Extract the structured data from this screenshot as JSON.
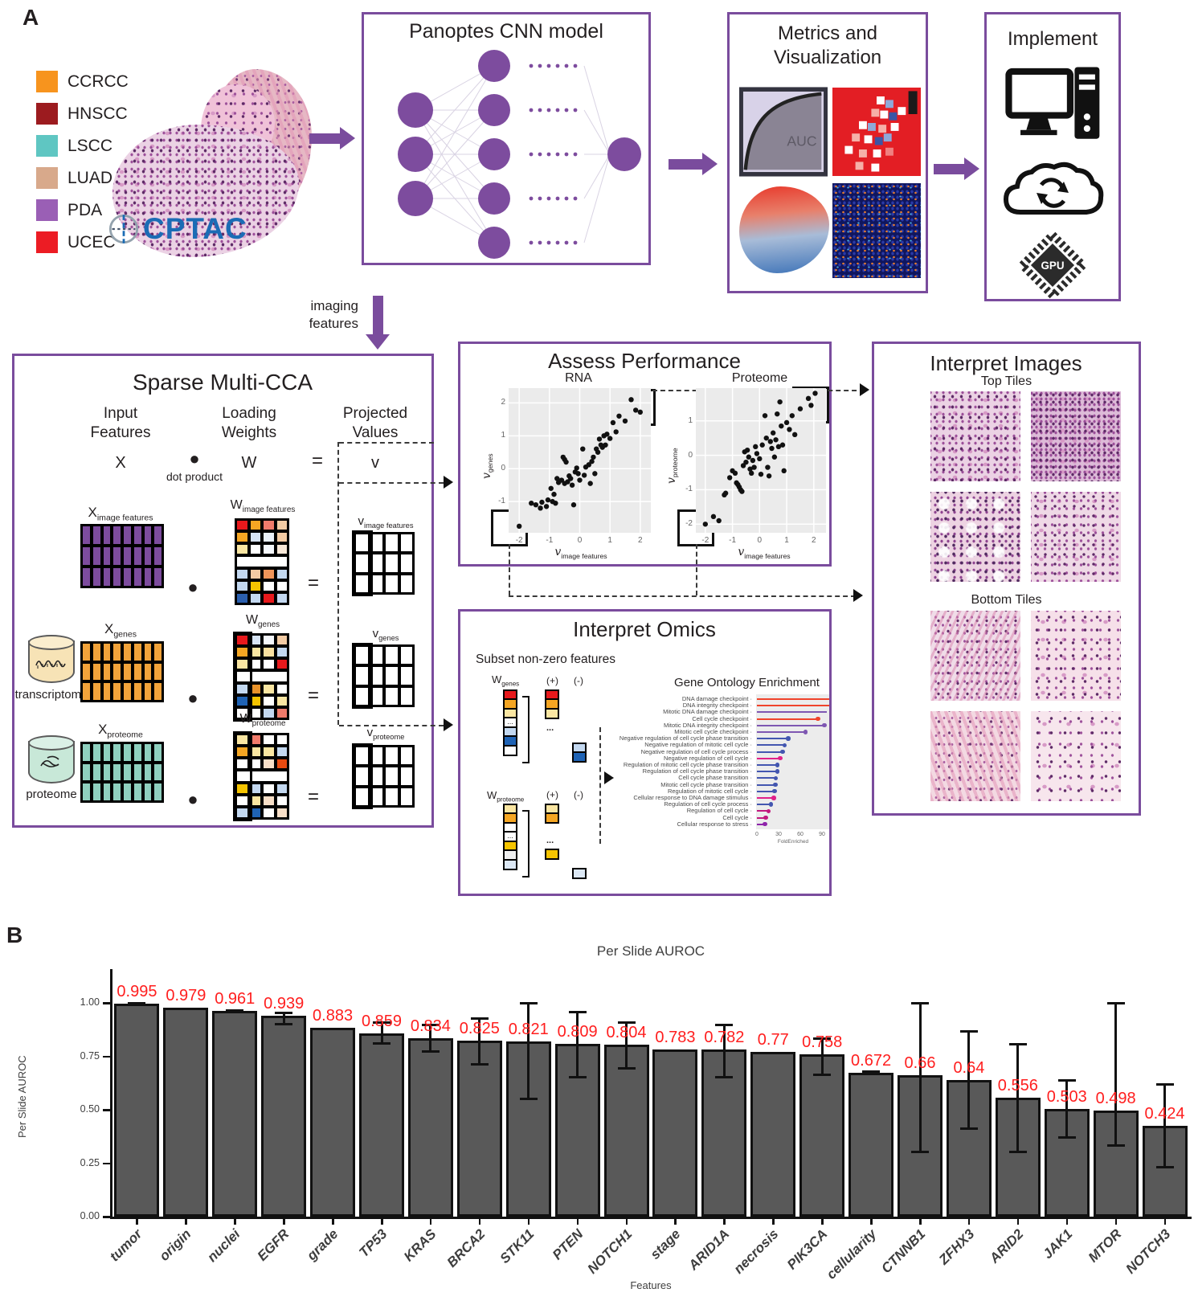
{
  "panel_a": {
    "label": "A",
    "legend": [
      {
        "label": "CCRCC",
        "color": "#F7941E"
      },
      {
        "label": "HNSCC",
        "color": "#9C1B1F"
      },
      {
        "label": "LSCC",
        "color": "#5FC6C2"
      },
      {
        "label": "LUAD",
        "color": "#D8A98B"
      },
      {
        "label": "PDA",
        "color": "#9A5FB5"
      },
      {
        "label": "UCEC",
        "color": "#EC1C24"
      }
    ],
    "cptac": {
      "name": "CPTAC",
      "color": "#1B6CB5"
    },
    "cnn": {
      "title": "Panoptes CNN model",
      "node_color": "#7D4C9E"
    },
    "metrics": {
      "title_line1": "Metrics and",
      "title_line2": "Visualization",
      "auc_label": "AUC"
    },
    "implement": {
      "title": "Implement",
      "gpu_label": "GPU",
      "icons": [
        "desktop-computer-icon",
        "cloud-sync-icon",
        "gpu-chip-icon"
      ]
    },
    "imaging_features": {
      "line1": "imaging",
      "line2": "features"
    },
    "cca": {
      "title": "Sparse Multi-CCA",
      "header": {
        "input1": "Input",
        "input2": "Features",
        "input_sym": "X",
        "dot_sym": "●",
        "dot_label": "dot product",
        "weights1": "Loading",
        "weights2": "Weights",
        "weights_sym": "W",
        "equals": "=",
        "projected1": "Projected",
        "projected2": "Values",
        "projected_sym": "v"
      },
      "rows": [
        {
          "x_sym": "X",
          "x_sub": "image features",
          "w_sym": "W",
          "w_sub": "image features",
          "v_sym": "v",
          "v_sub": "image features",
          "dot": "●",
          "equals": "="
        },
        {
          "source_label": "transcriptome",
          "x_sym": "X",
          "x_sub": "genes",
          "w_sym": "W",
          "w_sub": "genes",
          "v_sym": "v",
          "v_sub": "genes",
          "dot": "●",
          "equals": "="
        },
        {
          "source_label": "proteome",
          "x_sym": "X",
          "x_sub": "proteome",
          "w_sym": "W",
          "w_sub": "proteome",
          "v_sym": "v",
          "v_sub": "proteome",
          "dot": "●",
          "equals": "="
        }
      ]
    },
    "assess": {
      "title": "Assess Performance"
    },
    "omics": {
      "title": "Interpret Omics",
      "subset_label": "Subset non-zero features",
      "groups": [
        {
          "w_sym": "W",
          "w_sub": "genes",
          "plus": "(+)",
          "minus": "(-)",
          "dots": "..."
        },
        {
          "w_sym": "W",
          "w_sub": "proteome",
          "plus": "(+)",
          "minus": "(-)",
          "dots": "..."
        }
      ]
    },
    "images": {
      "title": "Interpret Images",
      "top_label": "Top Tiles",
      "bottom_label": "Bottom Tiles"
    }
  },
  "panel_b": {
    "label": "B"
  },
  "chart_data": [
    {
      "type": "bar",
      "title": "Per Slide AUROC",
      "xlabel": "Features",
      "ylabel": "Per Slide AUROC",
      "ylim": [
        0,
        1.0
      ],
      "yticks": [
        "0.00",
        "0.25",
        "0.50",
        "0.75",
        "1.00"
      ],
      "bar_color": "#595959",
      "value_label_color": "#FF1E1E",
      "categories": [
        "tumor",
        "origin",
        "nuclei",
        "EGFR",
        "grade",
        "TP53",
        "KRAS",
        "BRCA2",
        "STK11",
        "PTEN",
        "NOTCH1",
        "stage",
        "ARID1A",
        "necrosis",
        "PIK3CA",
        "cellularity",
        "CTNNB1",
        "ZFHX3",
        "ARID2",
        "JAK1",
        "MTOR",
        "NOTCH3"
      ],
      "values": [
        0.995,
        0.979,
        0.961,
        0.939,
        0.883,
        0.859,
        0.834,
        0.825,
        0.821,
        0.809,
        0.804,
        0.783,
        0.782,
        0.77,
        0.758,
        0.672,
        0.66,
        0.64,
        0.556,
        0.503,
        0.498,
        0.424
      ],
      "value_labels": [
        "0.995",
        "0.979",
        "0.961",
        "0.939",
        "0.883",
        "0.859",
        "0.834",
        "0.825",
        "0.821",
        "0.809",
        "0.804",
        "0.783",
        "0.782",
        "0.77",
        "0.758",
        "0.672",
        "0.66",
        "0.64",
        "0.556",
        "0.503",
        "0.498",
        "0.424"
      ],
      "error_low": [
        0.99,
        null,
        0.954,
        0.9,
        null,
        0.81,
        0.77,
        0.71,
        0.55,
        0.65,
        0.69,
        null,
        0.65,
        null,
        0.66,
        0.665,
        0.3,
        0.41,
        0.3,
        0.37,
        0.33,
        0.23
      ],
      "error_high": [
        1.0,
        null,
        0.966,
        0.956,
        null,
        0.91,
        0.9,
        0.93,
        1.0,
        0.96,
        0.91,
        null,
        0.9,
        null,
        0.835,
        0.68,
        1.0,
        0.87,
        0.81,
        0.64,
        1.0,
        0.62
      ]
    },
    {
      "type": "scatter",
      "title": "RNA",
      "xlabel_sym": "v",
      "xlabel_sub": "image features",
      "ylabel_sym": "v",
      "ylabel_sub": "genes",
      "xticks": [
        -2,
        -1,
        0,
        1,
        2
      ],
      "yticks": [
        2,
        1,
        0,
        -1
      ],
      "points": [
        [
          -2.0,
          -1.75
        ],
        [
          -1.6,
          -1.05
        ],
        [
          -1.45,
          -1.1
        ],
        [
          -1.3,
          -1.2
        ],
        [
          -1.25,
          -1.02
        ],
        [
          -1.1,
          -1.15
        ],
        [
          -1.05,
          -0.95
        ],
        [
          -0.95,
          -0.6
        ],
        [
          -0.9,
          -1.0
        ],
        [
          -0.85,
          -0.78
        ],
        [
          -0.8,
          -1.05
        ],
        [
          -0.75,
          -0.3
        ],
        [
          -0.7,
          -0.42
        ],
        [
          -0.6,
          -0.35
        ],
        [
          -0.55,
          0.35
        ],
        [
          -0.5,
          0.28
        ],
        [
          -0.5,
          -0.45
        ],
        [
          -0.45,
          0.2
        ],
        [
          -0.4,
          -0.4
        ],
        [
          -0.35,
          -0.22
        ],
        [
          -0.3,
          -0.3
        ],
        [
          -0.25,
          -0.5
        ],
        [
          -0.2,
          -1.1
        ],
        [
          -0.15,
          -0.1
        ],
        [
          -0.1,
          0.02
        ],
        [
          -0.05,
          -0.15
        ],
        [
          0.0,
          -0.35
        ],
        [
          0.1,
          0.6
        ],
        [
          0.15,
          -0.2
        ],
        [
          0.2,
          0.05
        ],
        [
          0.3,
          0.12
        ],
        [
          0.35,
          -0.45
        ],
        [
          0.4,
          0.22
        ],
        [
          0.45,
          0.35
        ],
        [
          0.5,
          -0.15
        ],
        [
          0.55,
          0.6
        ],
        [
          0.6,
          0.5
        ],
        [
          0.65,
          0.9
        ],
        [
          0.7,
          0.72
        ],
        [
          0.75,
          0.65
        ],
        [
          0.8,
          1.0
        ],
        [
          0.85,
          0.72
        ],
        [
          0.9,
          1.05
        ],
        [
          1.0,
          0.92
        ],
        [
          1.1,
          1.4
        ],
        [
          1.2,
          1.12
        ],
        [
          1.3,
          1.6
        ],
        [
          1.5,
          1.45
        ],
        [
          1.7,
          2.1
        ],
        [
          1.85,
          1.78
        ],
        [
          2.0,
          1.72
        ]
      ]
    },
    {
      "type": "scatter",
      "title": "Proteome",
      "xlabel_sym": "v",
      "xlabel_sub": "image features",
      "ylabel_sym": "v",
      "ylabel_sub": "proteome",
      "xticks": [
        -2,
        -1,
        0,
        1,
        2
      ],
      "yticks": [
        1,
        0,
        -1,
        -2
      ],
      "points": [
        [
          -2.0,
          -2.0
        ],
        [
          -1.7,
          -1.78
        ],
        [
          -1.5,
          -1.9
        ],
        [
          -1.3,
          -1.15
        ],
        [
          -1.25,
          -1.1
        ],
        [
          -1.1,
          -0.65
        ],
        [
          -1.0,
          -0.45
        ],
        [
          -0.9,
          -0.52
        ],
        [
          -0.85,
          -0.8
        ],
        [
          -0.8,
          -0.85
        ],
        [
          -0.75,
          -0.92
        ],
        [
          -0.7,
          -1.0
        ],
        [
          -0.65,
          -1.05
        ],
        [
          -0.6,
          -0.3
        ],
        [
          -0.55,
          0.1
        ],
        [
          -0.5,
          -0.2
        ],
        [
          -0.45,
          0.15
        ],
        [
          -0.4,
          -0.05
        ],
        [
          -0.35,
          -0.4
        ],
        [
          -0.3,
          -0.52
        ],
        [
          -0.25,
          -0.15
        ],
        [
          -0.2,
          -0.35
        ],
        [
          -0.15,
          0.25
        ],
        [
          -0.1,
          0.05
        ],
        [
          0.0,
          -0.1
        ],
        [
          0.05,
          -0.55
        ],
        [
          0.1,
          0.3
        ],
        [
          0.2,
          1.15
        ],
        [
          0.25,
          0.5
        ],
        [
          0.3,
          -0.35
        ],
        [
          0.35,
          -0.6
        ],
        [
          0.4,
          0.4
        ],
        [
          0.45,
          0.2
        ],
        [
          0.5,
          0.65
        ],
        [
          0.55,
          -0.05
        ],
        [
          0.6,
          0.45
        ],
        [
          0.65,
          1.2
        ],
        [
          0.7,
          0.25
        ],
        [
          0.75,
          1.55
        ],
        [
          0.8,
          0.85
        ],
        [
          0.85,
          0.3
        ],
        [
          0.9,
          -0.45
        ],
        [
          1.0,
          0.95
        ],
        [
          1.1,
          0.75
        ],
        [
          1.2,
          1.15
        ],
        [
          1.3,
          0.6
        ],
        [
          1.5,
          1.35
        ],
        [
          1.8,
          1.65
        ],
        [
          1.9,
          1.45
        ],
        [
          2.05,
          1.8
        ]
      ]
    },
    {
      "type": "lollipop",
      "title": "Gene Ontology Enrichment",
      "xlabel": "FoldEnriched",
      "xticks": [
        0,
        30,
        60,
        90
      ],
      "items": [
        {
          "label": "DNA damage checkpoint",
          "value": 107,
          "color": "#F0432B"
        },
        {
          "label": "DNA integrity checkpoint",
          "value": 107,
          "color": "#F0432B"
        },
        {
          "label": "Mitotic DNA damage checkpoint",
          "value": 97,
          "color": "#7E57B2"
        },
        {
          "label": "Cell cycle checkpoint",
          "value": 84,
          "color": "#F0432B"
        },
        {
          "label": "Mitotic DNA integrity checkpoint",
          "value": 93,
          "color": "#7E57B2"
        },
        {
          "label": "Mitotic cell cycle checkpoint",
          "value": 67,
          "color": "#7E57B2"
        },
        {
          "label": "Negative regulation of cell cycle phase transition",
          "value": 43,
          "color": "#4356B0"
        },
        {
          "label": "Negative regulation of mitotic cell cycle",
          "value": 38,
          "color": "#4356B0"
        },
        {
          "label": "Negative regulation of cell cycle process",
          "value": 35,
          "color": "#4356B0"
        },
        {
          "label": "Negative regulation of cell cycle",
          "value": 32,
          "color": "#E0218A"
        },
        {
          "label": "Regulation of mitotic cell cycle phase transition",
          "value": 28,
          "color": "#4356B0"
        },
        {
          "label": "Regulation of cell cycle phase transition",
          "value": 28,
          "color": "#4356B0"
        },
        {
          "label": "Cell cycle phase transition",
          "value": 26,
          "color": "#4356B0"
        },
        {
          "label": "Mitotic cell cycle phase transition",
          "value": 25,
          "color": "#4356B0"
        },
        {
          "label": "Regulation of mitotic cell cycle",
          "value": 24,
          "color": "#4356B0"
        },
        {
          "label": "Cellular response to DNA damage stimulus",
          "value": 23,
          "color": "#E0218A"
        },
        {
          "label": "Regulation of cell cycle process",
          "value": 19,
          "color": "#4356B0"
        },
        {
          "label": "Regulation of cell cycle",
          "value": 16,
          "color": "#C2187E"
        },
        {
          "label": "Cell cycle",
          "value": 12,
          "color": "#C2187E"
        },
        {
          "label": "Cellular response to stress",
          "value": 11,
          "color": "#8E24AA"
        }
      ]
    }
  ],
  "matrices": {
    "x_image": {
      "fill": "#7D4C9E",
      "rows": 3,
      "cols": 8
    },
    "x_genes": {
      "fill": "#F2A33A",
      "rows": 3,
      "cols": 8
    },
    "x_proteome": {
      "fill": "#8FD0BF",
      "rows": 3,
      "cols": 8
    },
    "w_image": [
      [
        "#E8191C",
        "#F5A623",
        "#F07B6B",
        "#F3CBA4"
      ],
      [
        "#F5A623",
        "#D7E4F5",
        "#EAF1FA",
        "#F3CBA4"
      ],
      [
        "#FAE6A2",
        "#FFFFFF",
        "#F5F8FC",
        "#F8E8D8"
      ],
      [
        "#FFFFFF"
      ],
      [
        "#C3D8F0",
        "#F3CBA4",
        "#F0955A",
        "#C3D8F0"
      ],
      [
        "#C3D8F0",
        "#F5C400",
        "#FFFFFF",
        "#FFFFFF"
      ],
      [
        "#2B5FAE",
        "#C3D8F0",
        "#E8191C",
        "#C3D8F0"
      ]
    ],
    "w_genes": [
      [
        "#E8191C",
        "#D7E4F5",
        "#F5F8FC",
        "#F3CBA4"
      ],
      [
        "#F5A623",
        "#FAE6A2",
        "#FAE0A0",
        "#C3D8F0"
      ],
      [
        "#FAE6A2",
        "#FFFFFF",
        "#FFFFFF",
        "#E8191C"
      ],
      [
        "#FFFFFF"
      ],
      [
        "#C3D8F0",
        "#E8922A",
        "#FAE6A2",
        "#FFFFFF"
      ],
      [
        "#1F63B5",
        "#F5C400",
        "#FFFFFF",
        "#FAE6A2"
      ],
      [
        "#FFFFFF",
        "#FFFFFF",
        "#C3D8F0",
        "#F07B6B"
      ]
    ],
    "w_proteome": [
      [
        "#FAE6A2",
        "#F07B6B",
        "#FFFFFF",
        "#FFFFFF"
      ],
      [
        "#F5A623",
        "#FAE6A2",
        "#FAE6A2",
        "#C3D8F0"
      ],
      [
        "#FFFFFF",
        "#FFFFFF",
        "#F8DFC8",
        "#E84A10"
      ],
      [
        "#FFFFFF"
      ],
      [
        "#F5C400",
        "#C3D8F0",
        "#FFFFFF",
        "#C3D8F0"
      ],
      [
        "#FFFFFF",
        "#FAE6A2",
        "#F8DFC8",
        "#FFFFFF"
      ],
      [
        "#C3D8F0",
        "#1F63B5",
        "#FFFFFF",
        "#F8DFC8"
      ]
    ],
    "v_grid": {
      "fill": "#FFFFFF",
      "rows": 3,
      "cols": 4
    },
    "omics_wgenes_col": [
      "#E8191C",
      "#F5A623",
      "#FAE6A2",
      "...",
      "#C3D8F0",
      "#1F63B5",
      "#FFFFFF"
    ],
    "omics_wgenes_plus": [
      "#E8191C",
      "#F5A623",
      "#FAE6A2"
    ],
    "omics_wgenes_minus": [
      "#C3D8F0",
      "#1F63B5"
    ],
    "omics_wproteome_col": [
      "#FAE6A2",
      "#F5A623",
      "#FFFFFF",
      "...",
      "#F5C400",
      "#EFEFEF",
      "#DCE8F5"
    ],
    "omics_wproteome_plus": [
      "#FAE6A2",
      "#F5A623"
    ],
    "omics_wproteome_plus2": [
      "#F5C400"
    ],
    "omics_wproteome_minus": [
      "#DCE8F5"
    ]
  }
}
